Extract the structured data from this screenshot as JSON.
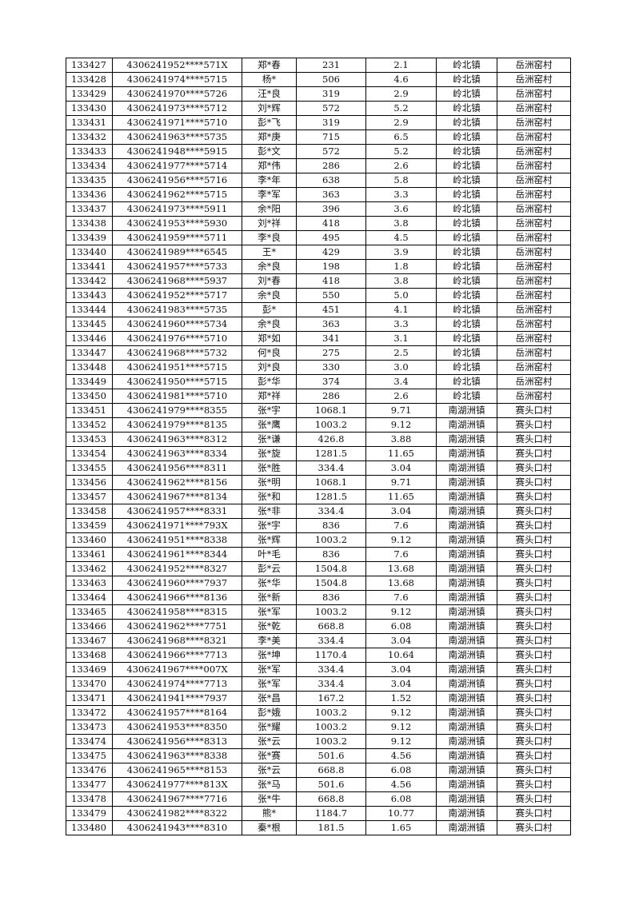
{
  "rows": [
    [
      "133427",
      "4306241952****571X",
      "郑*春",
      "231",
      "2.1",
      "岭北镇",
      "岳洲窑村"
    ],
    [
      "133428",
      "4306241974****5715",
      "杨*",
      "506",
      "4.6",
      "岭北镇",
      "岳洲窑村"
    ],
    [
      "133429",
      "4306241970****5726",
      "汪*良",
      "319",
      "2.9",
      "岭北镇",
      "岳洲窑村"
    ],
    [
      "133430",
      "4306241973****5712",
      "刘*辉",
      "572",
      "5.2",
      "岭北镇",
      "岳洲窑村"
    ],
    [
      "133431",
      "4306241971****5710",
      "彭*飞",
      "319",
      "2.9",
      "岭北镇",
      "岳洲窑村"
    ],
    [
      "133432",
      "4306241963****5735",
      "郑*庚",
      "715",
      "6.5",
      "岭北镇",
      "岳洲窑村"
    ],
    [
      "133433",
      "4306241948****5915",
      "彭*文",
      "572",
      "5.2",
      "岭北镇",
      "岳洲窑村"
    ],
    [
      "133434",
      "4306241977****5714",
      "郑*伟",
      "286",
      "2.6",
      "岭北镇",
      "岳洲窑村"
    ],
    [
      "133435",
      "4306241956****5716",
      "李*年",
      "638",
      "5.8",
      "岭北镇",
      "岳洲窑村"
    ],
    [
      "133436",
      "4306241962****5715",
      "李*军",
      "363",
      "3.3",
      "岭北镇",
      "岳洲窑村"
    ],
    [
      "133437",
      "4306241973****5911",
      "余*阳",
      "396",
      "3.6",
      "岭北镇",
      "岳洲窑村"
    ],
    [
      "133438",
      "4306241953****5930",
      "刘*祥",
      "418",
      "3.8",
      "岭北镇",
      "岳洲窑村"
    ],
    [
      "133439",
      "4306241959****5711",
      "李*良",
      "495",
      "4.5",
      "岭北镇",
      "岳洲窑村"
    ],
    [
      "133440",
      "4306241989****6545",
      "王*",
      "429",
      "3.9",
      "岭北镇",
      "岳洲窑村"
    ],
    [
      "133441",
      "4306241957****5733",
      "余*良",
      "198",
      "1.8",
      "岭北镇",
      "岳洲窑村"
    ],
    [
      "133442",
      "4306241968****5937",
      "刘*春",
      "418",
      "3.8",
      "岭北镇",
      "岳洲窑村"
    ],
    [
      "133443",
      "4306241952****5717",
      "余*良",
      "550",
      "5.0",
      "岭北镇",
      "岳洲窑村"
    ],
    [
      "133444",
      "4306241983****5735",
      "彭*",
      "451",
      "4.1",
      "岭北镇",
      "岳洲窑村"
    ],
    [
      "133445",
      "4306241960****5734",
      "余*良",
      "363",
      "3.3",
      "岭北镇",
      "岳洲窑村"
    ],
    [
      "133446",
      "4306241976****5710",
      "郑*如",
      "341",
      "3.1",
      "岭北镇",
      "岳洲窑村"
    ],
    [
      "133447",
      "4306241968****5732",
      "何*良",
      "275",
      "2.5",
      "岭北镇",
      "岳洲窑村"
    ],
    [
      "133448",
      "4306241951****5715",
      "刘*良",
      "330",
      "3.0",
      "岭北镇",
      "岳洲窑村"
    ],
    [
      "133449",
      "4306241950****5715",
      "彭*华",
      "374",
      "3.4",
      "岭北镇",
      "岳洲窑村"
    ],
    [
      "133450",
      "4306241981****5710",
      "郑*祥",
      "286",
      "2.6",
      "岭北镇",
      "岳洲窑村"
    ],
    [
      "133451",
      "4306241979****8355",
      "张*宇",
      "1068.1",
      "9.71",
      "南湖洲镇",
      "赛头口村"
    ],
    [
      "133452",
      "4306241979****8135",
      "张*鹰",
      "1003.2",
      "9.12",
      "南湖洲镇",
      "赛头口村"
    ],
    [
      "133453",
      "4306241963****8312",
      "张*谦",
      "426.8",
      "3.88",
      "南湖洲镇",
      "赛头口村"
    ],
    [
      "133454",
      "4306241963****8334",
      "张*旋",
      "1281.5",
      "11.65",
      "南湖洲镇",
      "赛头口村"
    ],
    [
      "133455",
      "4306241956****8311",
      "张*胜",
      "334.4",
      "3.04",
      "南湖洲镇",
      "赛头口村"
    ],
    [
      "133456",
      "4306241962****8156",
      "张*明",
      "1068.1",
      "9.71",
      "南湖洲镇",
      "赛头口村"
    ],
    [
      "133457",
      "4306241967****8134",
      "张*和",
      "1281.5",
      "11.65",
      "南湖洲镇",
      "赛头口村"
    ],
    [
      "133458",
      "4306241957****8331",
      "张*非",
      "334.4",
      "3.04",
      "南湖洲镇",
      "赛头口村"
    ],
    [
      "133459",
      "4306241971****793X",
      "张*宇",
      "836",
      "7.6",
      "南湖洲镇",
      "赛头口村"
    ],
    [
      "133460",
      "4306241951****8338",
      "张*辉",
      "1003.2",
      "9.12",
      "南湖洲镇",
      "赛头口村"
    ],
    [
      "133461",
      "4306241961****8344",
      "叶*毛",
      "836",
      "7.6",
      "南湖洲镇",
      "赛头口村"
    ],
    [
      "133462",
      "4306241952****8327",
      "彭*云",
      "1504.8",
      "13.68",
      "南湖洲镇",
      "赛头口村"
    ],
    [
      "133463",
      "4306241960****7937",
      "张*华",
      "1504.8",
      "13.68",
      "南湖洲镇",
      "赛头口村"
    ],
    [
      "133464",
      "4306241966****8136",
      "张*新",
      "836",
      "7.6",
      "南湖洲镇",
      "赛头口村"
    ],
    [
      "133465",
      "4306241958****8315",
      "张*军",
      "1003.2",
      "9.12",
      "南湖洲镇",
      "赛头口村"
    ],
    [
      "133466",
      "4306241962****7751",
      "张*乾",
      "668.8",
      "6.08",
      "南湖洲镇",
      "赛头口村"
    ],
    [
      "133467",
      "4306241968****8321",
      "李*美",
      "334.4",
      "3.04",
      "南湖洲镇",
      "赛头口村"
    ],
    [
      "133468",
      "4306241966****7713",
      "张*坤",
      "1170.4",
      "10.64",
      "南湖洲镇",
      "赛头口村"
    ],
    [
      "133469",
      "4306241967****007X",
      "张*军",
      "334.4",
      "3.04",
      "南湖洲镇",
      "赛头口村"
    ],
    [
      "133470",
      "4306241974****7713",
      "张*军",
      "334.4",
      "3.04",
      "南湖洲镇",
      "赛头口村"
    ],
    [
      "133471",
      "4306241941****7937",
      "张*昌",
      "167.2",
      "1.52",
      "南湖洲镇",
      "赛头口村"
    ],
    [
      "133472",
      "4306241957****8164",
      "彭*娥",
      "1003.2",
      "9.12",
      "南湖洲镇",
      "赛头口村"
    ],
    [
      "133473",
      "4306241953****8350",
      "张*耀",
      "1003.2",
      "9.12",
      "南湖洲镇",
      "赛头口村"
    ],
    [
      "133474",
      "4306241956****8313",
      "张*云",
      "1003.2",
      "9.12",
      "南湖洲镇",
      "赛头口村"
    ],
    [
      "133475",
      "4306241963****8338",
      "张*赛",
      "501.6",
      "4.56",
      "南湖洲镇",
      "赛头口村"
    ],
    [
      "133476",
      "4306241965****8153",
      "张*云",
      "668.8",
      "6.08",
      "南湖洲镇",
      "赛头口村"
    ],
    [
      "133477",
      "4306241977****813X",
      "张*马",
      "501.6",
      "4.56",
      "南湖洲镇",
      "赛头口村"
    ],
    [
      "133478",
      "4306241967****7716",
      "张*牛",
      "668.8",
      "6.08",
      "南湖洲镇",
      "赛头口村"
    ],
    [
      "133479",
      "4306241982****8322",
      "熊*",
      "1184.7",
      "10.77",
      "南湖洲镇",
      "赛头口村"
    ],
    [
      "133480",
      "4306241943****8310",
      "秦*根",
      "181.5",
      "1.65",
      "南湖洲镇",
      "赛头口村"
    ]
  ]
}
